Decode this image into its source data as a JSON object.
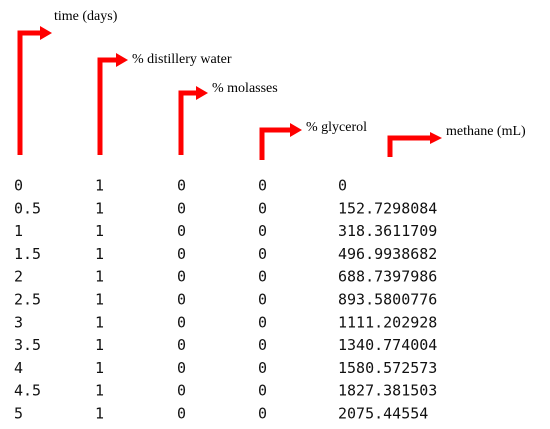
{
  "headers": [
    "time (days)",
    "% distillery water",
    "% molasses",
    "% glycerol",
    "methane (mL)"
  ],
  "rows": [
    [
      "0",
      "1",
      "0",
      "0",
      "0"
    ],
    [
      "0.5",
      "1",
      "0",
      "0",
      "152.7298084"
    ],
    [
      "1",
      "1",
      "0",
      "0",
      "318.3611709"
    ],
    [
      "1.5",
      "1",
      "0",
      "0",
      "496.9938682"
    ],
    [
      "2",
      "1",
      "0",
      "0",
      "688.7397986"
    ],
    [
      "2.5",
      "1",
      "0",
      "0",
      "893.5800776"
    ],
    [
      "3",
      "1",
      "0",
      "0",
      "1111.202928"
    ],
    [
      "3.5",
      "1",
      "0",
      "0",
      "1340.774004"
    ],
    [
      "4",
      "1",
      "0",
      "0",
      "1580.572573"
    ],
    [
      "4.5",
      "1",
      "0",
      "0",
      "1827.381503"
    ],
    [
      "5",
      "1",
      "0",
      "0",
      "2075.44554"
    ]
  ]
}
